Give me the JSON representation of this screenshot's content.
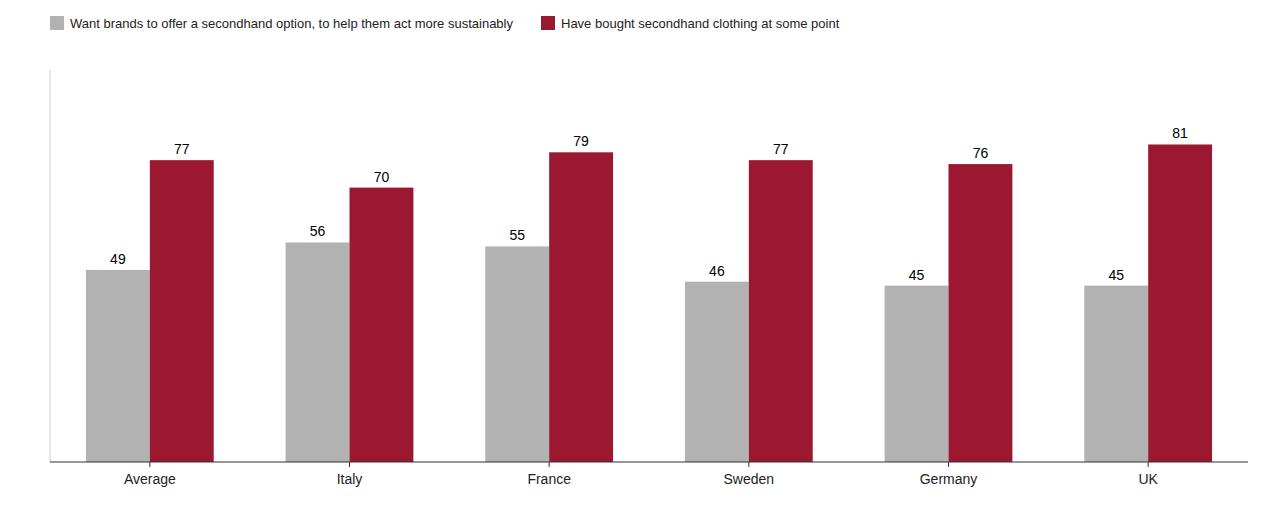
{
  "chart_data": {
    "type": "bar",
    "categories": [
      "Average",
      "Italy",
      "France",
      "Sweden",
      "Germany",
      "UK"
    ],
    "series": [
      {
        "name": "Want brands to offer a secondhand option, to help them act more sustainably",
        "color": "#b2b2b2",
        "values": [
          49,
          56,
          55,
          46,
          45,
          45
        ]
      },
      {
        "name": "Have bought secondhand clothing at some point",
        "color": "#9b1830",
        "values": [
          77,
          70,
          79,
          77,
          76,
          81
        ]
      }
    ],
    "ylim": [
      0,
      100
    ],
    "data_labels": true,
    "tick_labels": "x",
    "legend": "upper left",
    "grid": false
  }
}
